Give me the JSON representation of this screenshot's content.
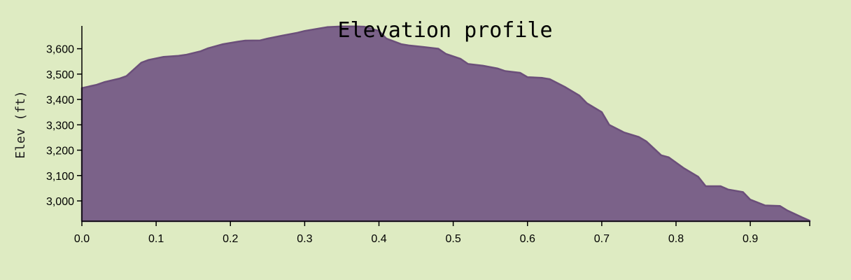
{
  "chart_data": {
    "type": "area",
    "title": "Elevation profile",
    "xlabel": "",
    "ylabel": "Elev (ft)",
    "xlim": [
      0,
      0.98
    ],
    "ylim": [
      2920,
      3690
    ],
    "x_ticks": [
      0.0,
      0.1,
      0.2,
      0.3,
      0.4,
      0.5,
      0.6,
      0.7,
      0.8,
      0.9
    ],
    "x_tick_labels": [
      "0.0",
      "0.1",
      "0.2",
      "0.3",
      "0.4",
      "0.5",
      "0.6",
      "0.7",
      "0.8",
      "0.9"
    ],
    "y_ticks": [
      3000,
      3100,
      3200,
      3300,
      3400,
      3500,
      3600
    ],
    "y_tick_labels": [
      "3,000",
      "3,100",
      "3,200",
      "3,300",
      "3,400",
      "3,500",
      "3,600"
    ],
    "grid": false,
    "colors": {
      "fill": "#7b6289",
      "stroke": "#6b4f7a",
      "background": "#deebc2"
    },
    "x": [
      0.0,
      0.02,
      0.03,
      0.05,
      0.06,
      0.08,
      0.09,
      0.11,
      0.13,
      0.14,
      0.16,
      0.17,
      0.19,
      0.21,
      0.22,
      0.24,
      0.25,
      0.27,
      0.29,
      0.3,
      0.32,
      0.33,
      0.35,
      0.37,
      0.38,
      0.4,
      0.41,
      0.43,
      0.44,
      0.46,
      0.48,
      0.49,
      0.51,
      0.52,
      0.54,
      0.56,
      0.57,
      0.59,
      0.6,
      0.62,
      0.63,
      0.65,
      0.67,
      0.68,
      0.7,
      0.71,
      0.73,
      0.75,
      0.76,
      0.78,
      0.79,
      0.81,
      0.83,
      0.84,
      0.86,
      0.87,
      0.89,
      0.9,
      0.92,
      0.94,
      0.95,
      0.97,
      0.98
    ],
    "y": [
      3445,
      3458,
      3468,
      3482,
      3492,
      3545,
      3556,
      3568,
      3572,
      3576,
      3590,
      3602,
      3618,
      3628,
      3632,
      3633,
      3640,
      3652,
      3663,
      3670,
      3680,
      3685,
      3688,
      3688,
      3687,
      3670,
      3640,
      3618,
      3613,
      3607,
      3600,
      3580,
      3560,
      3540,
      3533,
      3522,
      3512,
      3505,
      3488,
      3485,
      3480,
      3450,
      3415,
      3385,
      3350,
      3300,
      3270,
      3252,
      3235,
      3180,
      3172,
      3130,
      3095,
      3058,
      3058,
      3045,
      3035,
      3005,
      2982,
      2980,
      2962,
      2935,
      2922
    ]
  }
}
